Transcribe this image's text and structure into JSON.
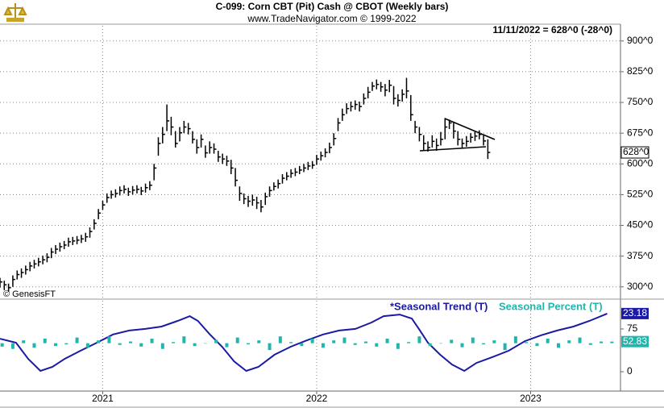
{
  "chart_data": [
    {
      "type": "ohlc",
      "title": "C-099:  Corn CBT (Pit) Cash @ CBOT  (Weekly bars)",
      "subtitle": "www.TradeNavigator.com © 1999-2022",
      "annotation": "11/11/2022 = 628^0 (-28^0)",
      "last_label": "628^0",
      "credit": "© GenesisFT",
      "color": "#000000",
      "x": [
        2020.52,
        2020.54,
        2020.56,
        2020.58,
        2020.6,
        2020.62,
        2020.64,
        2020.66,
        2020.68,
        2020.7,
        2020.72,
        2020.74,
        2020.76,
        2020.78,
        2020.8,
        2020.82,
        2020.84,
        2020.86,
        2020.88,
        2020.9,
        2020.92,
        2020.94,
        2020.96,
        2020.98,
        2021.0,
        2021.02,
        2021.04,
        2021.06,
        2021.08,
        2021.1,
        2021.12,
        2021.14,
        2021.16,
        2021.18,
        2021.2,
        2021.22,
        2021.24,
        2021.26,
        2021.28,
        2021.3,
        2021.32,
        2021.34,
        2021.36,
        2021.38,
        2021.4,
        2021.42,
        2021.44,
        2021.46,
        2021.48,
        2021.5,
        2021.52,
        2021.54,
        2021.56,
        2021.58,
        2021.6,
        2021.62,
        2021.64,
        2021.66,
        2021.68,
        2021.7,
        2021.72,
        2021.74,
        2021.76,
        2021.78,
        2021.8,
        2021.82,
        2021.84,
        2021.86,
        2021.88,
        2021.9,
        2021.92,
        2021.94,
        2021.96,
        2021.98,
        2022.0,
        2022.02,
        2022.04,
        2022.06,
        2022.08,
        2022.1,
        2022.12,
        2022.14,
        2022.16,
        2022.18,
        2022.2,
        2022.22,
        2022.24,
        2022.26,
        2022.28,
        2022.3,
        2022.32,
        2022.34,
        2022.36,
        2022.38,
        2022.4,
        2022.42,
        2022.44,
        2022.46,
        2022.48,
        2022.5,
        2022.52,
        2022.54,
        2022.56,
        2022.58,
        2022.6,
        2022.62,
        2022.64,
        2022.66,
        2022.68,
        2022.7,
        2022.72,
        2022.74,
        2022.76,
        2022.78,
        2022.8
      ],
      "high": [
        322,
        315,
        308,
        328,
        340,
        345,
        352,
        361,
        366,
        371,
        376,
        382,
        395,
        402,
        408,
        412,
        420,
        422,
        424,
        427,
        432,
        445,
        465,
        490,
        510,
        528,
        535,
        538,
        545,
        548,
        542,
        546,
        548,
        544,
        552,
        558,
        600,
        665,
        690,
        745,
        715,
        680,
        690,
        705,
        700,
        680,
        660,
        672,
        645,
        655,
        650,
        632,
        625,
        620,
        610,
        590,
        545,
        528,
        522,
        525,
        520,
        512,
        530,
        545,
        555,
        562,
        575,
        580,
        587,
        590,
        595,
        600,
        605,
        607,
        622,
        630,
        638,
        652,
        675,
        712,
        735,
        748,
        752,
        755,
        752,
        772,
        788,
        800,
        806,
        800,
        795,
        805,
        790,
        770,
        782,
        810,
        768,
        705,
        690,
        670,
        655,
        670,
        662,
        678,
        712,
        708,
        700,
        680,
        662,
        668,
        675,
        678,
        682,
        670,
        660
      ],
      "low": [
        298,
        292,
        288,
        300,
        318,
        322,
        330,
        338,
        345,
        350,
        355,
        360,
        370,
        380,
        386,
        392,
        398,
        402,
        404,
        407,
        410,
        420,
        440,
        465,
        488,
        505,
        515,
        518,
        523,
        528,
        522,
        525,
        528,
        524,
        530,
        536,
        560,
        620,
        650,
        680,
        670,
        640,
        655,
        675,
        672,
        650,
        625,
        640,
        615,
        625,
        625,
        605,
        600,
        595,
        575,
        545,
        510,
        502,
        495,
        498,
        490,
        482,
        500,
        520,
        535,
        540,
        552,
        560,
        566,
        570,
        575,
        580,
        585,
        588,
        598,
        608,
        616,
        626,
        645,
        680,
        705,
        722,
        728,
        732,
        728,
        745,
        760,
        778,
        782,
        776,
        765,
        775,
        745,
        740,
        752,
        760,
        705,
        675,
        655,
        632,
        630,
        640,
        632,
        645,
        660,
        685,
        662,
        645,
        638,
        642,
        652,
        656,
        660,
        645,
        612
      ],
      "close": [
        312,
        305,
        298,
        318,
        330,
        335,
        342,
        351,
        356,
        361,
        366,
        372,
        385,
        392,
        398,
        402,
        410,
        412,
        414,
        417,
        422,
        435,
        455,
        480,
        500,
        518,
        525,
        528,
        535,
        538,
        532,
        536,
        538,
        534,
        542,
        548,
        590,
        650,
        672,
        705,
        690,
        650,
        676,
        690,
        686,
        660,
        640,
        660,
        627,
        640,
        636,
        617,
        612,
        607,
        590,
        560,
        528,
        515,
        509,
        512,
        505,
        495,
        520,
        535,
        545,
        552,
        565,
        570,
        577,
        580,
        585,
        590,
        595,
        597,
        612,
        620,
        628,
        640,
        662,
        700,
        720,
        735,
        740,
        745,
        740,
        760,
        775,
        790,
        794,
        788,
        780,
        792,
        760,
        755,
        770,
        778,
        720,
        690,
        672,
        650,
        640,
        655,
        645,
        660,
        690,
        700,
        680,
        660,
        650,
        655,
        665,
        668,
        672,
        656,
        628
      ],
      "xlim": [
        2020.52,
        2023.42
      ],
      "ylim": [
        272,
        937
      ],
      "yticks": [
        {
          "value": 900,
          "label": "900^0"
        },
        {
          "value": 825,
          "label": "825^0"
        },
        {
          "value": 750,
          "label": "750^0"
        },
        {
          "value": 675,
          "label": "675^0"
        },
        {
          "value": 600,
          "label": "600^0"
        },
        {
          "value": 525,
          "label": "525^0"
        },
        {
          "value": 450,
          "label": "450^0"
        },
        {
          "value": 375,
          "label": "375^0"
        },
        {
          "value": 300,
          "label": "300^0"
        }
      ],
      "grid": true
    },
    {
      "type": "bar+line",
      "xlim": [
        2020.52,
        2023.42
      ],
      "xticks": [
        2021,
        2022,
        2023
      ],
      "ylim": [
        -34,
        124.5
      ],
      "yticks": [
        75,
        0
      ],
      "y2lim": [
        -6,
        28
      ],
      "baseline": 50,
      "grid": true,
      "series": [
        {
          "name": "*Seasonal Trend (T)",
          "type": "line",
          "axis": "y2",
          "color": "#1a1aa6",
          "x": [
            2020.52,
            2020.595,
            2020.652,
            2020.709,
            2020.765,
            2020.822,
            2020.897,
            2020.973,
            2021.048,
            2021.124,
            2021.199,
            2021.275,
            2021.35,
            2021.407,
            2021.445,
            2021.501,
            2021.558,
            2021.614,
            2021.671,
            2021.728,
            2021.803,
            2021.879,
            2021.954,
            2022.03,
            2022.105,
            2022.181,
            2022.256,
            2022.313,
            2022.388,
            2022.445,
            2022.483,
            2022.52,
            2022.577,
            2022.633,
            2022.69,
            2022.747,
            2022.822,
            2022.898,
            2022.973,
            2023.049,
            2023.124,
            2023.2,
            2023.275,
            2023.358
          ],
          "values": [
            13.7,
            12.2,
            6.1,
            1.6,
            3.1,
            6.1,
            9.2,
            12.2,
            15.3,
            16.8,
            17.4,
            18.3,
            20.4,
            22.2,
            20.4,
            15.3,
            10.7,
            5.2,
            1.6,
            3.1,
            7.7,
            10.7,
            13.1,
            15.3,
            16.8,
            17.4,
            19.8,
            22.2,
            22.8,
            21.3,
            16.8,
            12.2,
            7.7,
            4.0,
            1.6,
            4.6,
            6.8,
            9.2,
            12.8,
            15.0,
            16.8,
            18.3,
            20.4,
            23.18
          ]
        },
        {
          "name": "Seasonal Percent (T)",
          "type": "bar",
          "color": "#22b5ad",
          "x": [
            2020.53,
            2020.58,
            2020.63,
            2020.68,
            2020.73,
            2020.78,
            2020.83,
            2020.88,
            2020.93,
            2020.98,
            2021.03,
            2021.08,
            2021.13,
            2021.18,
            2021.23,
            2021.28,
            2021.33,
            2021.38,
            2021.43,
            2021.48,
            2021.53,
            2021.58,
            2021.63,
            2021.68,
            2021.73,
            2021.78,
            2021.83,
            2021.88,
            2021.93,
            2021.98,
            2022.03,
            2022.08,
            2022.13,
            2022.18,
            2022.23,
            2022.28,
            2022.33,
            2022.38,
            2022.43,
            2022.48,
            2022.53,
            2022.58,
            2022.63,
            2022.68,
            2022.73,
            2022.78,
            2022.83,
            2022.88,
            2022.93,
            2022.98,
            2023.03,
            2023.08,
            2023.13,
            2023.18,
            2023.23,
            2023.28,
            2023.33,
            2023.38
          ],
          "values": [
            44,
            40,
            55,
            42,
            58,
            45,
            48,
            60,
            42,
            55,
            62,
            47,
            53,
            44,
            58,
            40,
            52,
            62,
            45,
            50,
            56,
            43,
            60,
            48,
            55,
            38,
            62,
            52,
            45,
            58,
            42,
            55,
            60,
            47,
            53,
            44,
            58,
            40,
            52,
            62,
            45,
            50,
            56,
            43,
            60,
            48,
            55,
            38,
            62,
            52,
            45,
            58,
            42,
            55,
            60,
            47,
            53,
            52.83
          ]
        }
      ]
    }
  ]
}
